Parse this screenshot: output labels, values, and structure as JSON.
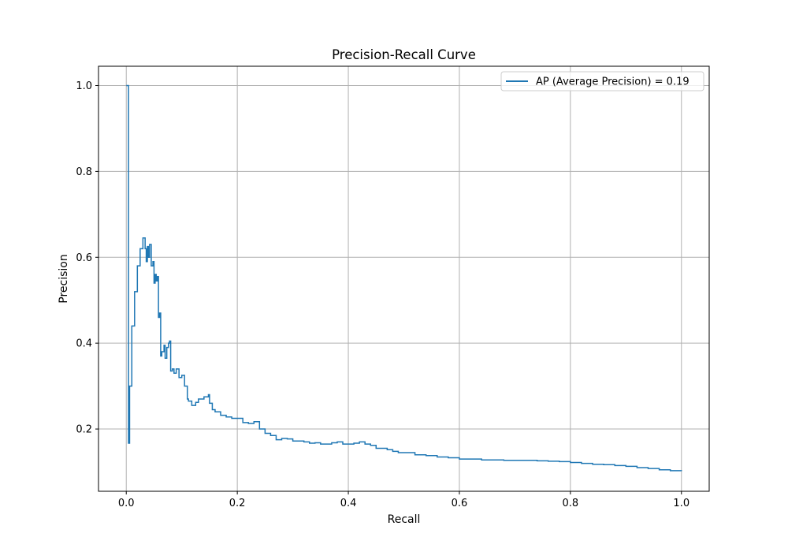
{
  "chart_data": {
    "type": "line",
    "title": "Precision-Recall Curve",
    "xlabel": "Recall",
    "ylabel": "Precision",
    "xlim": [
      -0.05,
      1.05
    ],
    "ylim": [
      0.055,
      1.045
    ],
    "xticks": [
      0.0,
      0.2,
      0.4,
      0.6,
      0.8,
      1.0
    ],
    "yticks": [
      0.2,
      0.4,
      0.6,
      0.8,
      1.0
    ],
    "xtick_labels": [
      "0.0",
      "0.2",
      "0.4",
      "0.6",
      "0.8",
      "1.0"
    ],
    "ytick_labels": [
      "0.2",
      "0.4",
      "0.6",
      "0.8",
      "1.0"
    ],
    "grid": true,
    "legend_position": "top-right",
    "colors": {
      "series": "#1f77b4",
      "grid": "#b0b0b0",
      "axes": "#000000"
    },
    "series": [
      {
        "name": "AP (Average Precision) = 0.19",
        "step": true,
        "x": [
          0.0,
          0.002,
          0.004,
          0.004,
          0.006,
          0.01,
          0.015,
          0.02,
          0.025,
          0.03,
          0.034,
          0.036,
          0.038,
          0.04,
          0.042,
          0.045,
          0.048,
          0.05,
          0.052,
          0.054,
          0.056,
          0.058,
          0.06,
          0.062,
          0.064,
          0.068,
          0.07,
          0.073,
          0.076,
          0.078,
          0.08,
          0.083,
          0.086,
          0.09,
          0.095,
          0.1,
          0.105,
          0.11,
          0.112,
          0.118,
          0.125,
          0.13,
          0.14,
          0.148,
          0.15,
          0.155,
          0.16,
          0.17,
          0.18,
          0.19,
          0.2,
          0.21,
          0.22,
          0.23,
          0.24,
          0.25,
          0.26,
          0.27,
          0.28,
          0.29,
          0.3,
          0.31,
          0.32,
          0.33,
          0.34,
          0.35,
          0.36,
          0.37,
          0.38,
          0.39,
          0.4,
          0.41,
          0.42,
          0.43,
          0.44,
          0.45,
          0.46,
          0.47,
          0.48,
          0.49,
          0.5,
          0.52,
          0.54,
          0.56,
          0.58,
          0.6,
          0.62,
          0.64,
          0.66,
          0.68,
          0.7,
          0.72,
          0.74,
          0.76,
          0.78,
          0.8,
          0.82,
          0.84,
          0.86,
          0.88,
          0.9,
          0.92,
          0.94,
          0.96,
          0.98,
          1.0
        ],
        "y": [
          1.0,
          1.0,
          1.0,
          0.167,
          0.3,
          0.44,
          0.52,
          0.58,
          0.62,
          0.645,
          0.62,
          0.59,
          0.625,
          0.6,
          0.63,
          0.58,
          0.59,
          0.54,
          0.56,
          0.545,
          0.555,
          0.46,
          0.47,
          0.37,
          0.38,
          0.395,
          0.365,
          0.39,
          0.4,
          0.405,
          0.335,
          0.34,
          0.33,
          0.34,
          0.32,
          0.325,
          0.3,
          0.27,
          0.265,
          0.255,
          0.262,
          0.27,
          0.275,
          0.28,
          0.26,
          0.245,
          0.24,
          0.232,
          0.228,
          0.225,
          0.225,
          0.215,
          0.213,
          0.217,
          0.2,
          0.19,
          0.185,
          0.175,
          0.178,
          0.177,
          0.172,
          0.172,
          0.17,
          0.167,
          0.168,
          0.165,
          0.165,
          0.168,
          0.17,
          0.165,
          0.165,
          0.167,
          0.17,
          0.165,
          0.162,
          0.155,
          0.155,
          0.152,
          0.148,
          0.145,
          0.145,
          0.14,
          0.138,
          0.135,
          0.133,
          0.13,
          0.13,
          0.128,
          0.128,
          0.127,
          0.127,
          0.127,
          0.126,
          0.125,
          0.124,
          0.122,
          0.12,
          0.118,
          0.117,
          0.115,
          0.113,
          0.11,
          0.108,
          0.105,
          0.103,
          0.102
        ]
      }
    ]
  }
}
